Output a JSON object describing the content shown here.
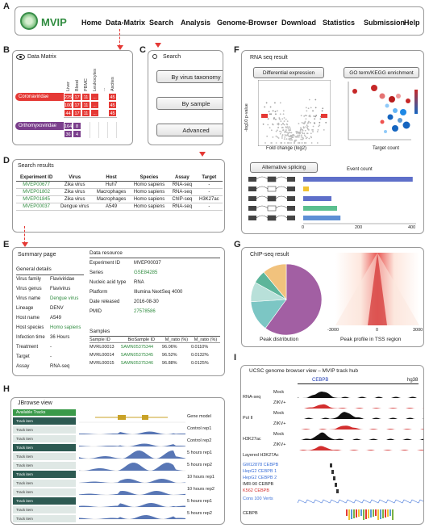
{
  "panels": {
    "A": "A",
    "B": "B",
    "C": "C",
    "D": "D",
    "E": "E",
    "F": "F",
    "G": "G",
    "H": "H",
    "I": "I"
  },
  "header": {
    "logo_text": "MVIP",
    "nav": [
      "Home",
      "Data-Matrix",
      "Search",
      "Analysis",
      "Genome-Browser",
      "Download",
      "Statistics",
      "Submission",
      "Help"
    ]
  },
  "accent": {
    "red": "#e53935",
    "purple": "#7b3f8c",
    "green": "#2e8b3e",
    "teal": "#3f6f66"
  },
  "data_matrix": {
    "title": "Data Matrix",
    "columns": [
      "Liver",
      "Blood",
      "PBMC",
      "Leukocytes",
      "...",
      "Ascites"
    ],
    "families": [
      {
        "name": "Coronaviridae",
        "color": "#e53935",
        "rows": [
          [
            "225",
            "17",
            "11",
            "...",
            "45"
          ],
          [
            "100",
            "17",
            "11",
            "...",
            "45"
          ],
          [
            "44",
            "17",
            "11",
            "...",
            "45"
          ]
        ]
      },
      {
        "name": "Orthomyxoviridae",
        "color": "#7b3f8c",
        "rows": [
          [
            "164",
            "8"
          ],
          [
            "36",
            "4"
          ]
        ]
      }
    ]
  },
  "search": {
    "label": "Search",
    "buttons": [
      "By virus taxonomy",
      "By sample",
      "Advanced"
    ]
  },
  "search_results": {
    "title": "Search results",
    "headers": [
      "Experiment ID",
      "Virus",
      "Host",
      "Species",
      "Assay",
      "Target"
    ],
    "rows": [
      [
        "MVEP00677",
        "Zika virus",
        "Huh7",
        "Homo sapiens",
        "RNA-seq",
        "-"
      ],
      [
        "MVEP01802",
        "Zika virus",
        "Macrophages",
        "Homo sapiens",
        "RNA-seq",
        "-"
      ],
      [
        "MVEP01845",
        "Zika virus",
        "Macrophages",
        "Homo sapiens",
        "ChIP-seq",
        "H3K27ac"
      ],
      [
        "MVEP00037",
        "Dengue virus",
        "A549",
        "Homo sapiens",
        "RNA-seq",
        "-"
      ]
    ]
  },
  "summary": {
    "title": "Summary page",
    "general_title": "General details",
    "general": [
      [
        "Virus family",
        "Flaviviridae"
      ],
      [
        "Virus genus",
        "Flavivirus"
      ],
      [
        "Virus name",
        "Dengue virus"
      ],
      [
        "Lineage",
        "DENV"
      ],
      [
        "Host name",
        "A549"
      ],
      [
        "Host species",
        "Homo sapiens"
      ],
      [
        "Infection time",
        "36 Hours"
      ],
      [
        "Treatment",
        "-"
      ],
      [
        "Target",
        "-"
      ],
      [
        "Assay",
        "RNA-seq"
      ]
    ],
    "resource_title": "Data resource",
    "resource": [
      [
        "Experiment ID",
        "MVEP00037"
      ],
      [
        "Series",
        "GSE84285"
      ],
      [
        "Nucleic acid type",
        "RNA"
      ],
      [
        "Platform",
        "Illumina NextSeq 4000"
      ],
      [
        "Date released",
        "2016-08-30"
      ],
      [
        "PMID",
        "27578586"
      ]
    ],
    "samples_title": "Samples",
    "sample_headers": [
      "Sample ID",
      "BioSample ID",
      "M_ratio (%)",
      "M_ratio (%)"
    ],
    "samples": [
      [
        "MVRL00013",
        "SAMN05375344",
        "96.06%",
        "0.0110%"
      ],
      [
        "MVRL00014",
        "SAMN05375345",
        "96.52%",
        "0.0132%"
      ],
      [
        "MVRL00015",
        "SAMN05375346",
        "96.88%",
        "0.0125%"
      ]
    ]
  },
  "rnaseq": {
    "title": "RNA seq result",
    "btn_de": "Differential expression",
    "btn_go": "GO term/KEGG enrichment",
    "btn_as": "Alternative splicing",
    "volcano_ylabel": "-log10 p-value",
    "volcano_xlabel": "Fold change (log2)",
    "go_xlabel": "Target count",
    "event_count_label": "Event count",
    "event_ticks": [
      "0",
      "200",
      "400"
    ],
    "splice_bars": [
      0.97,
      0.05,
      0.25,
      0.3,
      0.33
    ]
  },
  "chip": {
    "title": "ChIP-seq result",
    "pie_caption": "Peak distribution",
    "heat_caption": "Peak profile in TSS region",
    "heat_ticks": [
      "-3000",
      "0",
      "3000"
    ]
  },
  "chip_chart_data": {
    "type": "pie",
    "values": [
      60,
      14,
      9,
      6,
      11
    ],
    "colors": [
      "#a25fa3",
      "#7cc6c4",
      "#b8e0d9",
      "#5db59a",
      "#f1c27d"
    ]
  },
  "jbrowse": {
    "title": "JBrowse view",
    "available": "Available Tracks",
    "side_items": [
      "Track item",
      "Track item",
      "Track item",
      "Track item",
      "Track item",
      "Track item",
      "Track item",
      "Track item",
      "Track item",
      "Track item",
      "Track item",
      "Track item"
    ],
    "tracks": [
      "Gene model",
      "Control rep1",
      "Control rep2",
      "5 hours rep1",
      "5 hours rep2",
      "10 hours rep1",
      "10 hours rep2",
      "5 hours rep1",
      "5 hours rep2"
    ]
  },
  "ucsc": {
    "title": "UCSC genome browser view – MVIP track hub",
    "gene": "CEBPB",
    "scale": "hg38",
    "groups": [
      {
        "name": "RNA-seq",
        "rows": [
          "Mock",
          "ZIKV+"
        ]
      },
      {
        "name": "Pol II",
        "rows": [
          "Mock",
          "ZIKV+"
        ]
      },
      {
        "name": "H3K27ac",
        "rows": [
          "Mock",
          "ZIKV+"
        ]
      }
    ],
    "layered": "Layered H3K27Ac",
    "tfbs": [
      "GM12878 CEBPB",
      "HepG2 CEBPB 1",
      "HepG2 CEBPB 2",
      "IMR-90 CEBPB",
      "K562 CEBPB"
    ],
    "cons": "Cons 100 Verts",
    "bottom_gene": "CEBPB"
  }
}
